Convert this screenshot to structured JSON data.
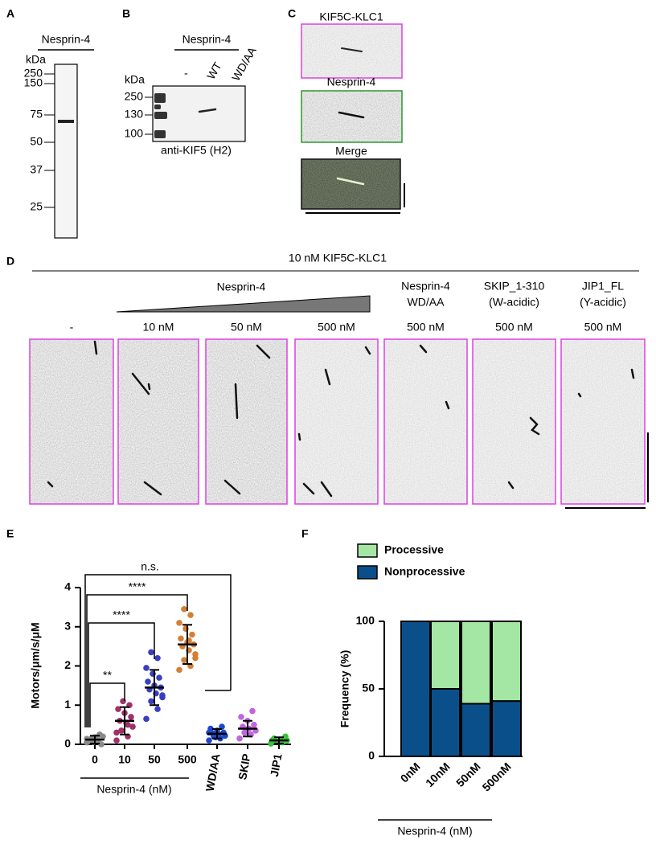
{
  "panels": {
    "A": {
      "letter": "A",
      "title": "Nesprin-4",
      "unit": "kDa",
      "markers": [
        "250",
        "150",
        "75",
        "50",
        "37",
        "25"
      ]
    },
    "B": {
      "letter": "B",
      "title": "Nesprin-4",
      "lanes": [
        "-",
        "WT",
        "WD/AA"
      ],
      "unit": "kDa",
      "markers": [
        "250",
        "130",
        "100"
      ],
      "caption": "anti-KIF5 (H2)"
    },
    "C": {
      "letter": "C",
      "labels": [
        "KIF5C-KLC1",
        "Nesprin-4",
        "Merge"
      ]
    },
    "D": {
      "letter": "D",
      "title": "10 nM KIF5C-KLC1",
      "group": "Nesprin-4",
      "columns": [
        {
          "condition": "-"
        },
        {
          "condition": "10 nM"
        },
        {
          "condition": "50 nM"
        },
        {
          "condition": "500 nM"
        },
        {
          "header": [
            "Nesprin-4",
            "WD/AA"
          ],
          "condition": "500 nM"
        },
        {
          "header": [
            "SKIP_1-310",
            "(W-acidic)"
          ],
          "condition": "500 nM"
        },
        {
          "header": [
            "JIP1_FL",
            "(Y-acidic)"
          ],
          "condition": "500 nM"
        }
      ]
    }
  },
  "chart_data": [
    {
      "type": "strip",
      "panel_label": "E",
      "y_label": "Motors/μm/s/μM",
      "group_label": "Nesprin-4 (nM)",
      "categories": [
        "0",
        "10",
        "50",
        "500",
        "WD/AA",
        "SKIP",
        "JIP1"
      ],
      "ylim": [
        0,
        4
      ],
      "yticks": [
        0,
        1,
        2,
        3,
        4
      ],
      "groups": [
        {
          "color": "#8a8a8a",
          "mean": 0.12,
          "sd": 0.1,
          "points": [
            0.05,
            0.1,
            0.15,
            0.2,
            0.08,
            0.12,
            0.0,
            0.18,
            0.1,
            0.25,
            0.06,
            0.14
          ]
        },
        {
          "color": "#a0306a",
          "mean": 0.6,
          "sd": 0.35,
          "points": [
            0.1,
            0.2,
            0.35,
            0.45,
            0.55,
            0.6,
            0.7,
            0.8,
            0.9,
            1.0,
            1.1,
            0.3,
            0.5
          ]
        },
        {
          "color": "#3a3fc0",
          "mean": 1.45,
          "sd": 0.45,
          "points": [
            0.65,
            0.9,
            1.1,
            1.2,
            1.3,
            1.4,
            1.45,
            1.5,
            1.6,
            1.7,
            1.8,
            1.95,
            2.2,
            2.35,
            1.25
          ]
        },
        {
          "color": "#d47f34",
          "mean": 2.55,
          "sd": 0.5,
          "points": [
            1.9,
            2.0,
            2.15,
            2.3,
            2.4,
            2.5,
            2.55,
            2.6,
            2.7,
            2.8,
            2.95,
            3.1,
            3.3,
            3.45,
            2.2,
            2.65
          ]
        },
        {
          "color": "#1d48c8",
          "mean": 0.27,
          "sd": 0.12,
          "points": [
            0.1,
            0.15,
            0.2,
            0.22,
            0.25,
            0.28,
            0.3,
            0.35,
            0.4,
            0.45,
            0.18,
            0.3
          ]
        },
        {
          "color": "#c065e0",
          "mean": 0.4,
          "sd": 0.2,
          "points": [
            0.15,
            0.25,
            0.3,
            0.35,
            0.4,
            0.45,
            0.5,
            0.6,
            0.7,
            0.85,
            0.38
          ]
        },
        {
          "color": "#3cc03c",
          "mean": 0.1,
          "sd": 0.08,
          "points": [
            0.02,
            0.05,
            0.08,
            0.1,
            0.12,
            0.15,
            0.2,
            0.07,
            0.11
          ]
        }
      ],
      "annotations": [
        "**",
        "****",
        "****",
        "n.s."
      ]
    },
    {
      "type": "stacked-bar",
      "panel_label": "F",
      "y_label": "Frequency (%)",
      "group_label": "Nesprin-4 (nM)",
      "categories": [
        "0nM",
        "10nM",
        "50nM",
        "500nM"
      ],
      "ylim": [
        0,
        100
      ],
      "yticks": [
        0,
        50,
        100
      ],
      "legend": "top",
      "series": [
        {
          "name": "Nonprocessive",
          "color": "#0b4f8a",
          "values": [
            100,
            50,
            39,
            41
          ]
        },
        {
          "name": "Processive",
          "color": "#a4e6a4",
          "values": [
            0,
            50,
            61,
            59
          ]
        }
      ]
    }
  ]
}
